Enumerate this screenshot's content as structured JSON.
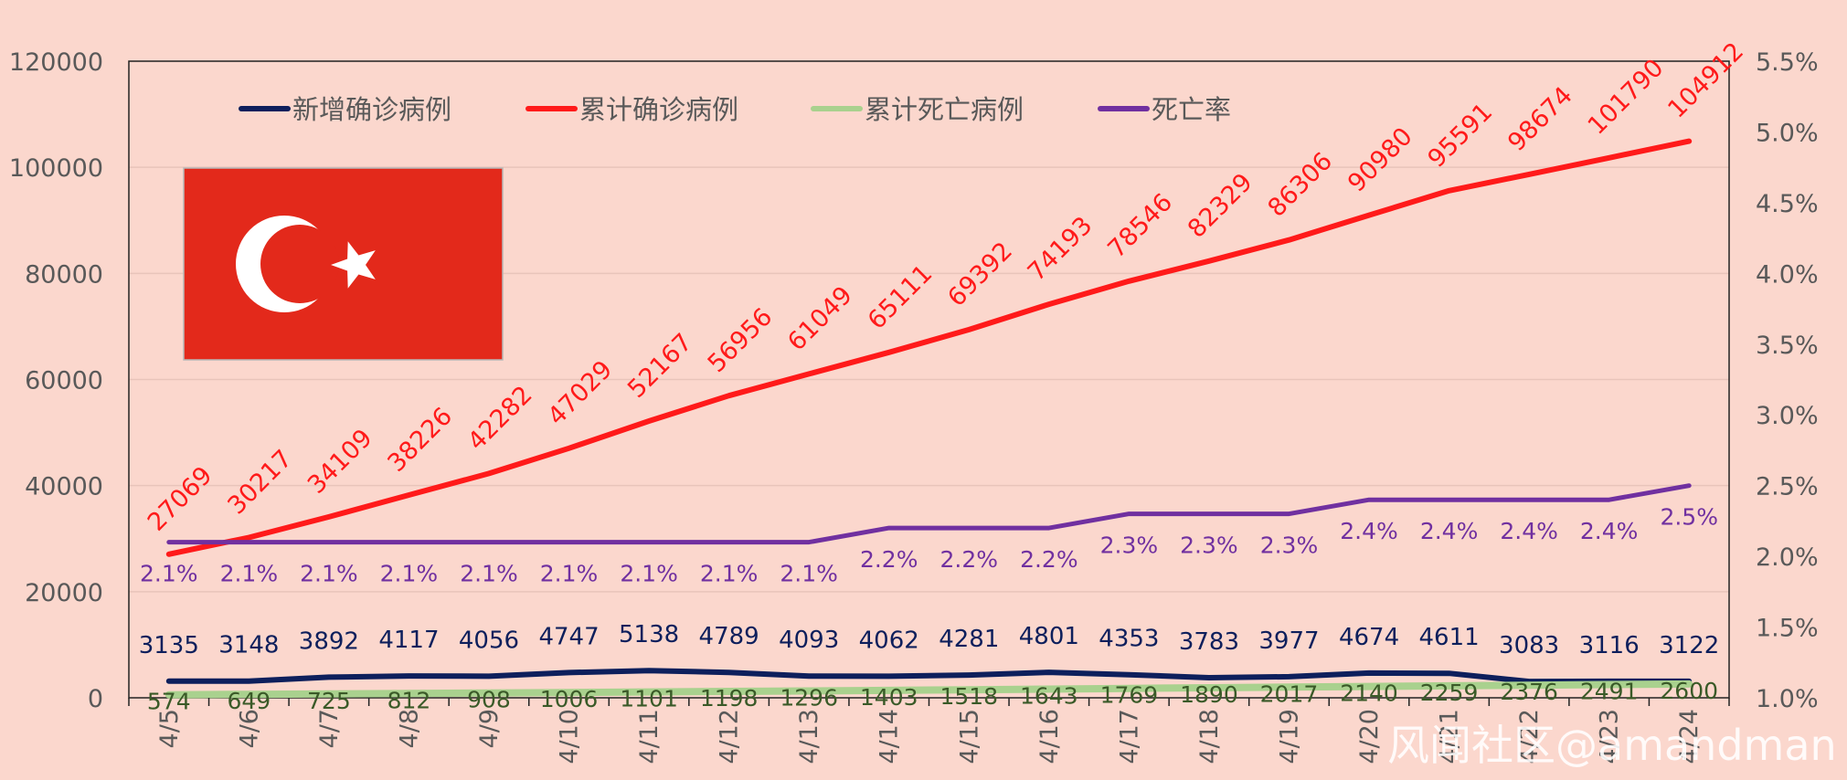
{
  "chart_data": {
    "type": "line",
    "categories": [
      "4/5",
      "4/6",
      "4/7",
      "4/8",
      "4/9",
      "4/10",
      "4/11",
      "4/12",
      "4/13",
      "4/14",
      "4/15",
      "4/16",
      "4/17",
      "4/18",
      "4/19",
      "4/20",
      "4/21",
      "4/22",
      "4/23",
      "4/24"
    ],
    "series": [
      {
        "name": "新增确诊病例",
        "axis": "left",
        "color": "#0d1f5c",
        "label_color": "#0d1f5c",
        "values": [
          3135,
          3148,
          3892,
          4117,
          4056,
          4747,
          5138,
          4789,
          4093,
          4062,
          4281,
          4801,
          4353,
          3783,
          3977,
          4674,
          4611,
          3083,
          3116,
          3122
        ]
      },
      {
        "name": "累计确诊病例",
        "axis": "left",
        "color": "#ff1a1a",
        "label_color": "#ff1a1a",
        "values": [
          27069,
          30217,
          34109,
          38226,
          42282,
          47029,
          52167,
          56956,
          61049,
          65111,
          69392,
          74193,
          78546,
          82329,
          86306,
          90980,
          95591,
          98674,
          101790,
          104912
        ]
      },
      {
        "name": "累计死亡病例",
        "axis": "left",
        "color": "#a9d18e",
        "label_color": "#3a5a28",
        "values": [
          574,
          649,
          725,
          812,
          908,
          1006,
          1101,
          1198,
          1296,
          1403,
          1518,
          1643,
          1769,
          1890,
          2017,
          2140,
          2259,
          2376,
          2491,
          2600
        ]
      },
      {
        "name": "死亡率",
        "axis": "right",
        "color": "#7030a0",
        "label_color": "#7030a0",
        "values": [
          2.1,
          2.1,
          2.1,
          2.1,
          2.1,
          2.1,
          2.1,
          2.1,
          2.1,
          2.2,
          2.2,
          2.2,
          2.3,
          2.3,
          2.3,
          2.4,
          2.4,
          2.4,
          2.4,
          2.5
        ],
        "labels": [
          "2.1%",
          "2.1%",
          "2.1%",
          "2.1%",
          "2.1%",
          "2.1%",
          "2.1%",
          "2.1%",
          "2.1%",
          "2.2%",
          "2.2%",
          "2.2%",
          "2.3%",
          "2.3%",
          "2.3%",
          "2.4%",
          "2.4%",
          "2.4%",
          "2.4%",
          "2.5%"
        ]
      }
    ],
    "ylim_left": [
      0,
      120000
    ],
    "yticks_left": [
      0,
      20000,
      40000,
      60000,
      80000,
      100000,
      120000
    ],
    "ylim_right": [
      1.0,
      5.5
    ],
    "yticks_right": [
      "1.0%",
      "1.5%",
      "2.0%",
      "2.5%",
      "3.0%",
      "3.5%",
      "4.0%",
      "4.5%",
      "5.0%",
      "5.5%"
    ],
    "grid": true,
    "legend_position": "top"
  },
  "watermark": "风闻社区@amandman",
  "colors": {
    "background": "#fbd7cd",
    "axis_text": "#595959",
    "flag_red": "#e3291b",
    "flag_white": "#ffffff"
  }
}
